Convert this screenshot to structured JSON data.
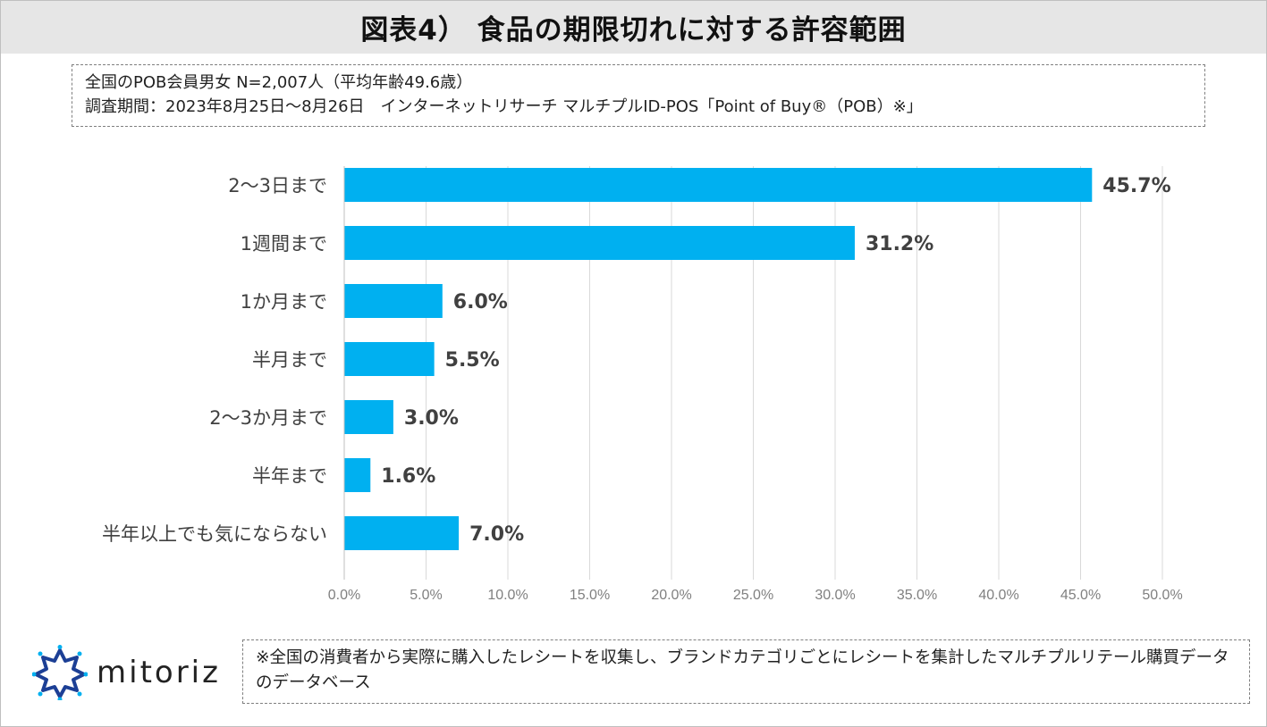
{
  "title": "図表4） 食品の期限切れに対する許容範囲",
  "info": {
    "line1": "全国のPOB会員男女 N=2,007人（平均年齢49.6歳）",
    "line2": "調査期間：2023年8月25日～8月26日　インターネットリサーチ マルチプルID-POS「Point of Buy®（POB）※」"
  },
  "logo": {
    "text": "mitoriz",
    "icon": "starburst-logo-icon"
  },
  "note": "※全国の消費者から実際に購入したレシートを収集し、ブランドカテゴリごとにレシートを集計したマルチプルリテール購買データのデータベース",
  "colors": {
    "bar": "#00b0f0",
    "grid": "#d9d9d9",
    "logo": "#1c3f95"
  },
  "chart_data": {
    "type": "bar",
    "orientation": "horizontal",
    "categories": [
      "2～3日まで",
      "1週間まで",
      "1か月まで",
      "半月まで",
      "2～3か月まで",
      "半年まで",
      "半年以上でも気にならない"
    ],
    "values": [
      45.7,
      31.2,
      6.0,
      5.5,
      3.0,
      1.6,
      7.0
    ],
    "data_labels": [
      "45.7%",
      "31.2%",
      "6.0%",
      "5.5%",
      "3.0%",
      "1.6%",
      "7.0%"
    ],
    "xlim": [
      0,
      50
    ],
    "x_ticks": [
      "0.0%",
      "5.0%",
      "10.0%",
      "15.0%",
      "20.0%",
      "25.0%",
      "30.0%",
      "35.0%",
      "40.0%",
      "45.0%",
      "50.0%"
    ],
    "grid": true
  }
}
